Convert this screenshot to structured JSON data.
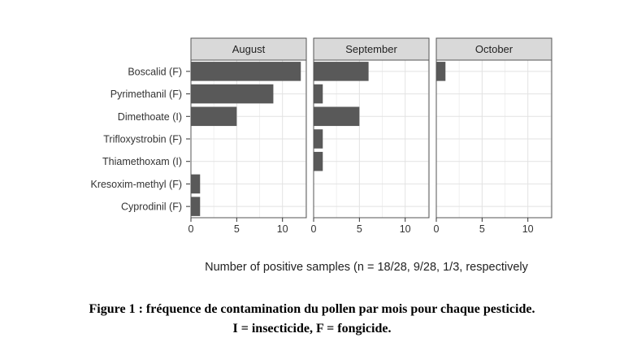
{
  "chart_data": {
    "type": "bar",
    "orientation": "horizontal",
    "facets": [
      "August",
      "September",
      "October"
    ],
    "categories": [
      "Boscalid (F)",
      "Pyrimethanil (F)",
      "Dimethoate (I)",
      "Trifloxystrobin (F)",
      "Thiamethoxam (I)",
      "Kresoxim-methyl (F)",
      "Cyprodinil (F)"
    ],
    "series": [
      {
        "facet": "August",
        "values": [
          12,
          9,
          5,
          0,
          0,
          1,
          1
        ]
      },
      {
        "facet": "September",
        "values": [
          6,
          1,
          5,
          1,
          1,
          0,
          0
        ]
      },
      {
        "facet": "October",
        "values": [
          1,
          0,
          0,
          0,
          0,
          0,
          0
        ]
      }
    ],
    "xlim": [
      0,
      12.6
    ],
    "xticks": [
      "0",
      "5",
      "10"
    ],
    "xtick_values": [
      0,
      5,
      10
    ],
    "xlabel": "Number of positive samples (n = 18/28, 9/28, 1/3, respectively",
    "bar_color": "#595959",
    "strip_color": "#d9d9d9",
    "grid": true
  },
  "caption": {
    "line1": "Figure 1 : fréquence de contamination du pollen par mois pour chaque pesticide.",
    "line2": "I = insecticide, F = fongicide."
  }
}
